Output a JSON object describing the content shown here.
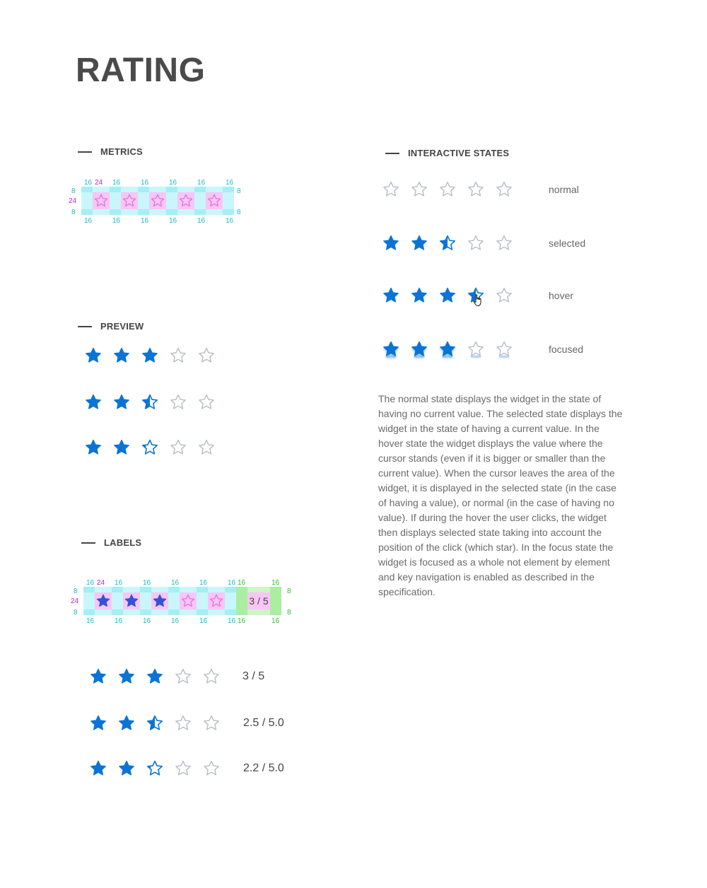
{
  "page": {
    "title": "RATING"
  },
  "colors": {
    "accent": "#0a74d6",
    "empty": "#b8bcc8",
    "metric_cyan": "#19b7c9",
    "metric_magenta": "#c21fc6",
    "metric_green": "#2fbd2f"
  },
  "sections": {
    "metrics": {
      "title": "METRICS"
    },
    "preview": {
      "title": "PREVIEW"
    },
    "labels": {
      "title": "LABELS"
    },
    "interactive": {
      "title": "INTERACTIVE STATES"
    }
  },
  "metrics_diagram": {
    "gap_label": "16",
    "star_label": "24",
    "pad_label": "8"
  },
  "labels_diagram": {
    "gap_label": "16",
    "star_label": "24",
    "pad_label": "8",
    "value_text": "3 / 5"
  },
  "preview_rows": [
    {
      "value": 3,
      "fills": [
        1,
        1,
        1,
        0,
        0
      ]
    },
    {
      "value": 2.5,
      "fills": [
        1,
        1,
        0.5,
        0,
        0
      ]
    },
    {
      "value": 2.2,
      "fills": [
        1,
        1,
        0.2,
        0,
        0
      ]
    }
  ],
  "label_rows": [
    {
      "fills": [
        1,
        1,
        1,
        0,
        0
      ],
      "label": "3 / 5"
    },
    {
      "fills": [
        1,
        1,
        0.5,
        0,
        0
      ],
      "label": "2.5 / 5.0"
    },
    {
      "fills": [
        1,
        1,
        0.2,
        0,
        0
      ],
      "label": "2.2 / 5.0"
    }
  ],
  "states": [
    {
      "name": "normal",
      "fills": [
        0,
        0,
        0,
        0,
        0
      ]
    },
    {
      "name": "selected",
      "fills": [
        1,
        1,
        0.5,
        0,
        0
      ]
    },
    {
      "name": "hover",
      "fills": [
        1,
        1,
        1,
        0.5,
        0
      ]
    },
    {
      "name": "focused",
      "fills": [
        1,
        1,
        1,
        0,
        0
      ]
    }
  ],
  "description": "The normal state displays the widget in the state of having no current value. The selected state displays the widget in the state of having a current value. In the hover state the widget displays the value where the cursor stands (even if it is bigger or smaller than the current value). When the cursor leaves the area of the widget, it is displayed in the selected state (in the case of having a value), or normal (in the case of having no value). If during the hover the user clicks, the widget then displays selected state taking into account the position of the click (which star). In the focus state the widget is focused as a whole not element by element and key navigation is enabled as described in the specification.",
  "icons": {
    "star": "star-icon",
    "cursor": "hand-pointer-icon"
  }
}
